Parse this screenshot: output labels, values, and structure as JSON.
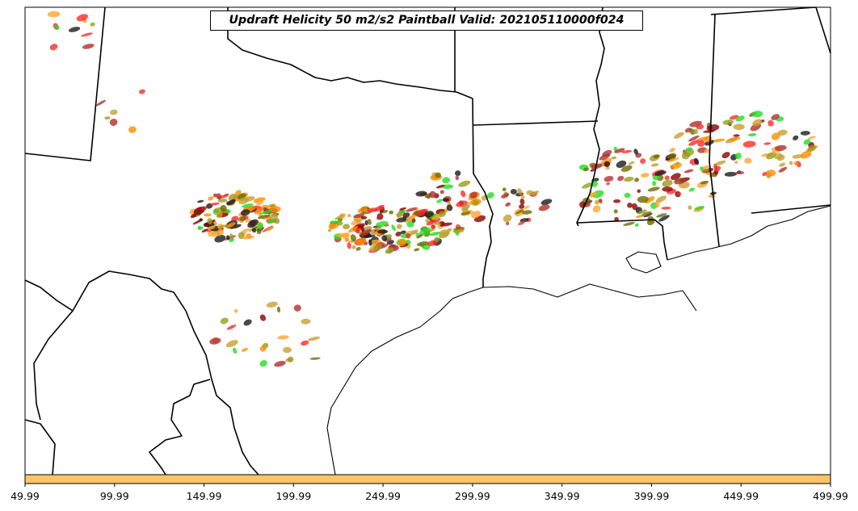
{
  "title": "Updraft Helicity 50 m2/s2 Paintball Valid: 202105110000f024",
  "colors": {
    "background": "#ffffff",
    "boundary": "#000000",
    "colorbar": "#ffc466",
    "members": [
      "#ff2a2a",
      "#ff8c00",
      "#ffa530",
      "#8b0000",
      "#6b6b00",
      "#9b9b20",
      "#22dd22",
      "#1a1a1a",
      "#b03030",
      "#c8a030"
    ]
  },
  "colorbar": {
    "ticks": [
      "49.99",
      "99.99",
      "149.99",
      "199.99",
      "249.99",
      "299.99",
      "349.99",
      "399.99",
      "449.99",
      "499.99"
    ]
  }
}
